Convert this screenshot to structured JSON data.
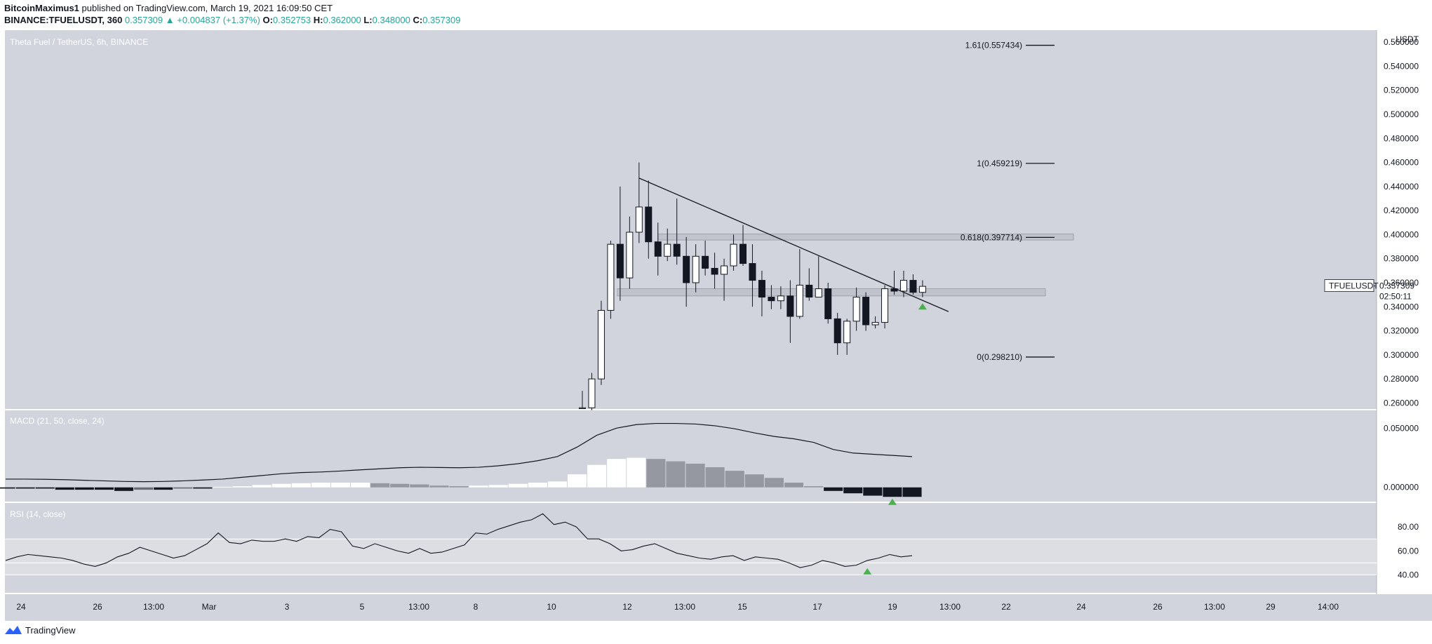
{
  "header": {
    "author": "BitcoinMaximus1",
    "published_text": "published on TradingView.com, March 19, 2021 16:09:50 CET",
    "symbol": "BINANCE:TFUELUSDT, 360",
    "last": "0.357309",
    "change": "+0.004837 (+1.37%)",
    "o_label": "O:",
    "o_val": "0.352753",
    "h_label": "H:",
    "h_val": "0.362000",
    "l_label": "L:",
    "l_val": "0.348000",
    "c_label": "C:",
    "c_val": "0.357309"
  },
  "footer": {
    "brand": "TradingView"
  },
  "colors": {
    "pane_bg": "#d1d4dc",
    "rsi_band": "#dcdee4",
    "candle_up": "#ffffff",
    "candle_down": "#131722",
    "axis_bg": "#ffffff",
    "arrow": "#4caf50",
    "hist_light": "#ffffff",
    "hist_grey": "#9598a1",
    "hist_dark": "#131722",
    "hist_mid": "#6a6d78"
  },
  "chart_data": [
    {
      "type": "candlestick",
      "title": "Theta Fuel / TetherUS, 6h, BINANCE",
      "unit": "USDT",
      "ylim": [
        0.255,
        0.57
      ],
      "y_ticks": [
        "0.560000",
        "0.540000",
        "0.520000",
        "0.500000",
        "0.480000",
        "0.460000",
        "0.440000",
        "0.420000",
        "0.400000",
        "0.380000",
        "0.360000",
        "0.340000",
        "0.320000",
        "0.300000",
        "0.280000",
        "0.260000"
      ],
      "x_ticks": [
        "24",
        "26",
        "13:00",
        "Mar",
        "3",
        "5",
        "13:00",
        "8",
        "10",
        "12",
        "13:00",
        "15",
        "17",
        "19",
        "13:00",
        "22",
        "24",
        "26",
        "13:00",
        "29",
        "14:00"
      ],
      "candles": [
        {
          "o": 0.256,
          "h": 0.27,
          "l": 0.255,
          "c": 0.256
        },
        {
          "o": 0.256,
          "h": 0.285,
          "l": 0.254,
          "c": 0.28
        },
        {
          "o": 0.28,
          "h": 0.345,
          "l": 0.275,
          "c": 0.337
        },
        {
          "o": 0.337,
          "h": 0.395,
          "l": 0.33,
          "c": 0.392
        },
        {
          "o": 0.392,
          "h": 0.44,
          "l": 0.345,
          "c": 0.364
        },
        {
          "o": 0.364,
          "h": 0.415,
          "l": 0.355,
          "c": 0.402
        },
        {
          "o": 0.402,
          "h": 0.46,
          "l": 0.393,
          "c": 0.423
        },
        {
          "o": 0.423,
          "h": 0.445,
          "l": 0.38,
          "c": 0.394
        },
        {
          "o": 0.394,
          "h": 0.41,
          "l": 0.366,
          "c": 0.382
        },
        {
          "o": 0.382,
          "h": 0.405,
          "l": 0.378,
          "c": 0.392
        },
        {
          "o": 0.392,
          "h": 0.43,
          "l": 0.375,
          "c": 0.382
        },
        {
          "o": 0.382,
          "h": 0.398,
          "l": 0.34,
          "c": 0.36
        },
        {
          "o": 0.36,
          "h": 0.392,
          "l": 0.352,
          "c": 0.382
        },
        {
          "o": 0.382,
          "h": 0.395,
          "l": 0.366,
          "c": 0.372
        },
        {
          "o": 0.372,
          "h": 0.385,
          "l": 0.355,
          "c": 0.367
        },
        {
          "o": 0.367,
          "h": 0.38,
          "l": 0.345,
          "c": 0.374
        },
        {
          "o": 0.374,
          "h": 0.4,
          "l": 0.37,
          "c": 0.392
        },
        {
          "o": 0.392,
          "h": 0.408,
          "l": 0.374,
          "c": 0.376
        },
        {
          "o": 0.376,
          "h": 0.392,
          "l": 0.34,
          "c": 0.362
        },
        {
          "o": 0.362,
          "h": 0.37,
          "l": 0.332,
          "c": 0.348
        },
        {
          "o": 0.348,
          "h": 0.358,
          "l": 0.338,
          "c": 0.345
        },
        {
          "o": 0.345,
          "h": 0.357,
          "l": 0.338,
          "c": 0.349
        },
        {
          "o": 0.349,
          "h": 0.362,
          "l": 0.31,
          "c": 0.332
        },
        {
          "o": 0.332,
          "h": 0.388,
          "l": 0.33,
          "c": 0.358
        },
        {
          "o": 0.358,
          "h": 0.372,
          "l": 0.345,
          "c": 0.348
        },
        {
          "o": 0.348,
          "h": 0.382,
          "l": 0.348,
          "c": 0.355
        },
        {
          "o": 0.355,
          "h": 0.36,
          "l": 0.326,
          "c": 0.33
        },
        {
          "o": 0.33,
          "h": 0.335,
          "l": 0.3,
          "c": 0.31
        },
        {
          "o": 0.31,
          "h": 0.33,
          "l": 0.3,
          "c": 0.328
        },
        {
          "o": 0.328,
          "h": 0.356,
          "l": 0.32,
          "c": 0.348
        },
        {
          "o": 0.348,
          "h": 0.352,
          "l": 0.32,
          "c": 0.325
        },
        {
          "o": 0.325,
          "h": 0.332,
          "l": 0.322,
          "c": 0.327
        },
        {
          "o": 0.327,
          "h": 0.358,
          "l": 0.322,
          "c": 0.355
        },
        {
          "o": 0.355,
          "h": 0.37,
          "l": 0.35,
          "c": 0.353
        },
        {
          "o": 0.353,
          "h": 0.37,
          "l": 0.348,
          "c": 0.362
        },
        {
          "o": 0.362,
          "h": 0.367,
          "l": 0.35,
          "c": 0.352
        },
        {
          "o": 0.352,
          "h": 0.362,
          "l": 0.348,
          "c": 0.357
        }
      ],
      "fib_levels": [
        {
          "label": "1.61(0.557434)",
          "value": 0.557434
        },
        {
          "label": "1(0.459219)",
          "value": 0.459219
        },
        {
          "label": "0.618(0.397714)",
          "value": 0.397714
        },
        {
          "label": "0(0.298210)",
          "value": 0.29821
        }
      ],
      "zones": [
        {
          "from": 0.3955,
          "to": 0.4005
        },
        {
          "from": 0.349,
          "to": 0.355
        }
      ],
      "trendline": {
        "from_candle": 6,
        "from_price": 0.447,
        "to_candle": 38,
        "to_price": 0.336
      },
      "price_tag": {
        "symbol": "TFUELUSDT",
        "price": "0.357309",
        "countdown": "02:50:11"
      },
      "arrow_candle": 36
    },
    {
      "type": "line+histogram",
      "title": "MACD (21, 50, close, 24)",
      "ylim": [
        -0.012,
        0.065
      ],
      "y_ticks": [
        "0.050000",
        "0.000000"
      ],
      "signal": [
        0.007,
        0.007,
        0.0068,
        0.0065,
        0.006,
        0.0055,
        0.005,
        0.0048,
        0.005,
        0.0055,
        0.0062,
        0.007,
        0.0085,
        0.01,
        0.0115,
        0.0125,
        0.013,
        0.0138,
        0.0148,
        0.0157,
        0.0166,
        0.017,
        0.0168,
        0.0166,
        0.017,
        0.0182,
        0.02,
        0.0225,
        0.026,
        0.034,
        0.044,
        0.05,
        0.053,
        0.054,
        0.054,
        0.0535,
        0.052,
        0.0495,
        0.046,
        0.043,
        0.041,
        0.038,
        0.032,
        0.029,
        0.028,
        0.027,
        0.026
      ],
      "histogram": [
        -0.001,
        -0.001,
        -0.001,
        -0.002,
        -0.002,
        -0.002,
        -0.003,
        -0.002,
        -0.002,
        -0.001,
        -0.001,
        0.0005,
        0.001,
        0.002,
        0.003,
        0.0035,
        0.004,
        0.004,
        0.004,
        0.0035,
        0.003,
        0.0025,
        0.0015,
        0.001,
        0.0015,
        0.002,
        0.003,
        0.004,
        0.005,
        0.011,
        0.019,
        0.024,
        0.025,
        0.024,
        0.022,
        0.02,
        0.017,
        0.014,
        0.011,
        0.008,
        0.004,
        0.001,
        -0.003,
        -0.005,
        -0.007,
        -0.008,
        -0.008
      ],
      "arrow_index": 45
    },
    {
      "type": "line",
      "title": "RSI (14, close)",
      "ylim": [
        25,
        100
      ],
      "y_ticks": [
        "80.00",
        "60.00",
        "40.00"
      ],
      "band": [
        40,
        70
      ],
      "midline": 50,
      "values": [
        52,
        55,
        57,
        56,
        55,
        54,
        52,
        49,
        47,
        50,
        55,
        58,
        63,
        60,
        57,
        54,
        56,
        61,
        66,
        75,
        67,
        66,
        69,
        68,
        68,
        70,
        68,
        72,
        71,
        78,
        76,
        64,
        62,
        66,
        63,
        60,
        58,
        62,
        58,
        59,
        62,
        65,
        75,
        74,
        78,
        81,
        84,
        86,
        91,
        82,
        84,
        80,
        70,
        70,
        66,
        60,
        61,
        64,
        66,
        62,
        58,
        56,
        54,
        53,
        55,
        56,
        52,
        55,
        54,
        53,
        50,
        46,
        48,
        52,
        50,
        47,
        48,
        52,
        54,
        57,
        55,
        56
      ],
      "arrow_index": 77
    }
  ]
}
